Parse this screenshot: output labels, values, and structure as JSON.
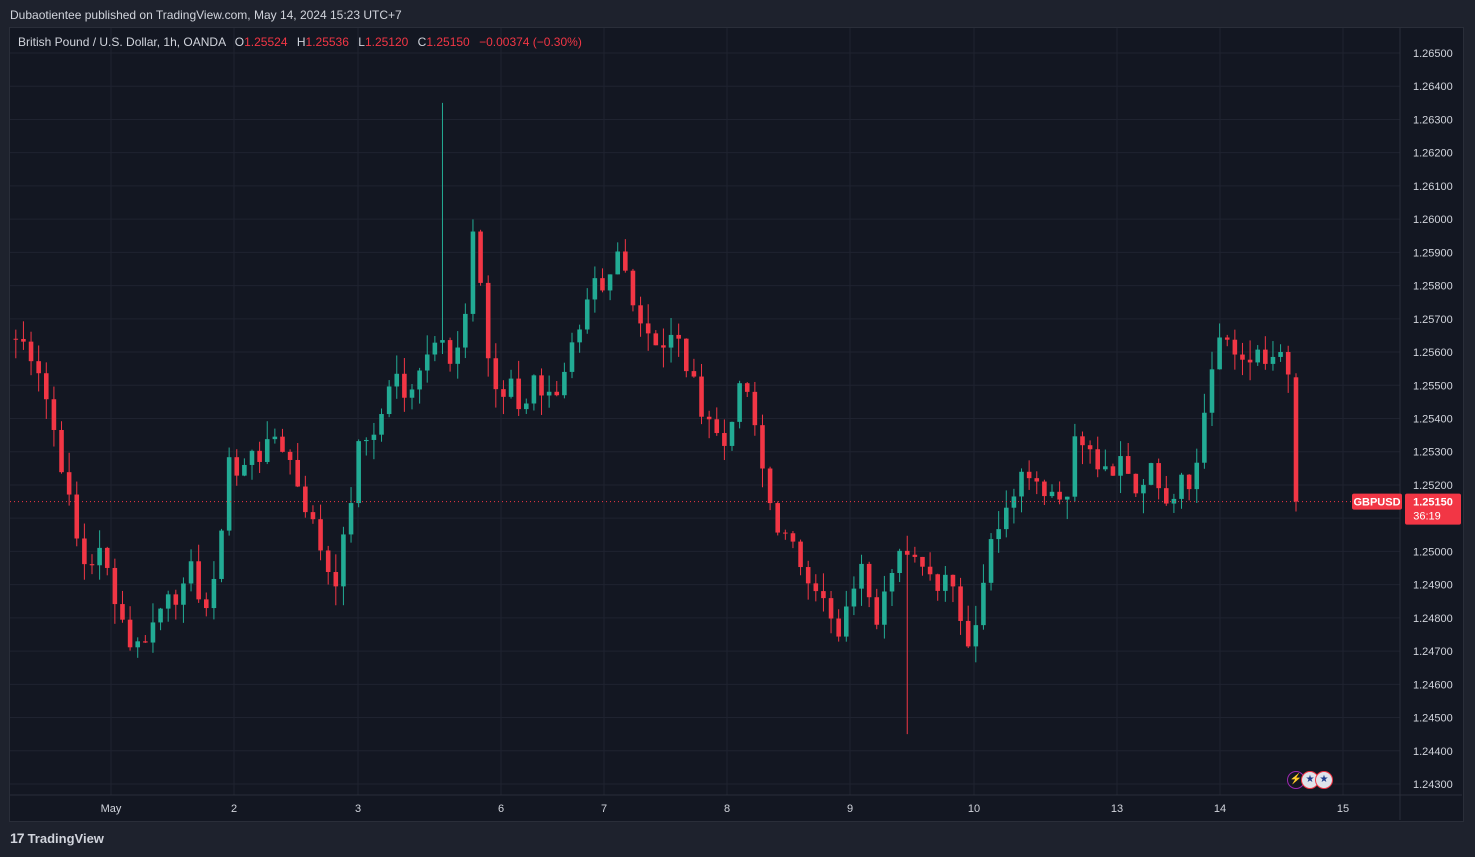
{
  "header": {
    "publish_line": "Dubaotientee published on TradingView.com, May 14, 2024 15:23 UTC+7"
  },
  "legend": {
    "symbol_desc": "British Pound / U.S. Dollar, 1h, OANDA",
    "o_label": "O",
    "o_value": "1.25524",
    "h_label": "H",
    "h_value": "1.25536",
    "l_label": "L",
    "l_value": "1.25120",
    "c_label": "C",
    "c_value": "1.25150",
    "change": "−0.00374 (−0.30%)"
  },
  "price_tag": {
    "symbol": "GBPUSD",
    "price": "1.25150",
    "countdown": "36:19"
  },
  "footer": {
    "brand": "TradingView"
  },
  "events": [
    {
      "icon": "lightning-icon",
      "glyph": "⚡"
    },
    {
      "icon": "us-flag-icon",
      "glyph": "★"
    },
    {
      "icon": "us-flag-icon",
      "glyph": "★"
    }
  ],
  "colors": {
    "up": "#22ab94",
    "down": "#f23645",
    "background": "#131722",
    "grid": "#1e222d",
    "text": "#d1d4dc"
  },
  "chart_data": {
    "type": "candlestick",
    "symbol": "GBPUSD",
    "timeframe": "1h",
    "ylim": [
      1.2425,
      1.2655
    ],
    "y_ticks": [
      "1.26500",
      "1.26400",
      "1.26300",
      "1.26200",
      "1.26100",
      "1.26000",
      "1.25900",
      "1.25800",
      "1.25700",
      "1.25600",
      "1.25500",
      "1.25400",
      "1.25300",
      "1.25200",
      "1.25100",
      "1.25000",
      "1.24900",
      "1.24800",
      "1.24700",
      "1.24600",
      "1.24500",
      "1.24400",
      "1.24300"
    ],
    "x_ticks": [
      "May",
      "2",
      "3",
      "6",
      "7",
      "8",
      "9",
      "10",
      "13",
      "14",
      "15"
    ],
    "last_price": 1.2515,
    "segments": [
      {
        "from": 1.2564,
        "points": [
          1.2562,
          1.2555,
          1.254,
          1.2525,
          1.2505,
          1.2495,
          1.25,
          1.2492,
          1.248,
          1.247,
          1.2475,
          1.248,
          1.249,
          1.2485,
          1.2495,
          1.2482,
          1.249,
          1.253,
          1.252,
          1.2532,
          1.2528,
          1.2535,
          1.253,
          1.252,
          1.251,
          1.25,
          1.249,
          1.2505,
          1.253,
          1.2535,
          1.254,
          1.2555,
          1.2545,
          1.2555,
          1.256,
          1.257,
          1.2555,
          1.2565,
          1.26,
          1.256,
          1.2545,
          1.255,
          1.254,
          1.2555,
          1.2545,
          1.255,
          1.256,
          1.2565,
          1.258,
          1.2575,
          1.259,
          1.2582,
          1.257,
          1.2565,
          1.2562,
          1.2565,
          1.2555,
          1.2545,
          1.254,
          1.253,
          1.2545,
          1.255,
          1.253,
          1.2515,
          1.2505,
          1.25,
          1.2495,
          1.249,
          1.248,
          1.2472,
          1.249,
          1.2495,
          1.248,
          1.2495,
          1.25,
          1.2495,
          1.2498,
          1.249,
          1.2495,
          1.2485,
          1.247,
          1.249,
          1.2505,
          1.2515,
          1.2522,
          1.2525,
          1.252,
          1.2518,
          1.2515,
          1.2535,
          1.253,
          1.2525,
          1.252,
          1.253,
          1.2518,
          1.2525,
          1.2522,
          1.2515,
          1.2525,
          1.252,
          1.2545,
          1.2565,
          1.256,
          1.2558,
          1.256,
          1.2555,
          1.256,
          1.2552
        ],
        "n_candles": 168,
        "from_x": 12,
        "to_x": 1292
      },
      {
        "last_candle": {
          "o": 1.25524,
          "h": 1.25536,
          "l": 1.2512,
          "c": 1.2515
        }
      }
    ],
    "extremes": {
      "high": 1.2635,
      "low": 1.2445
    }
  }
}
